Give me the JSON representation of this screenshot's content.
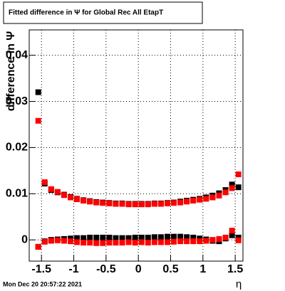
{
  "chart_data": {
    "type": "scatter",
    "title": "Fitted difference in  Ψ  for Global Rec All EtapT",
    "y_label": "difference in  Ψ",
    "x_label": "η",
    "timestamp": "Mon Dec 20 20:57:22 2021",
    "x": [
      -1.55,
      -1.45,
      -1.35,
      -1.25,
      -1.15,
      -1.05,
      -0.95,
      -0.85,
      -0.75,
      -0.65,
      -0.55,
      -0.45,
      -0.35,
      -0.25,
      -0.15,
      -0.05,
      0.05,
      0.15,
      0.25,
      0.35,
      0.45,
      0.55,
      0.65,
      0.75,
      0.85,
      0.95,
      1.05,
      1.15,
      1.25,
      1.35,
      1.45,
      1.55
    ],
    "series": [
      {
        "color": "#000000",
        "values": [
          0.032,
          0.0122,
          0.0108,
          0.0103,
          0.0098,
          0.0093,
          0.0089,
          0.0086,
          0.0084,
          0.0082,
          0.0081,
          0.008,
          0.0079,
          0.0079,
          0.0078,
          0.0078,
          0.0078,
          0.0078,
          0.0079,
          0.0079,
          0.008,
          0.0081,
          0.0083,
          0.0085,
          0.0087,
          0.0089,
          0.0092,
          0.0096,
          0.0101,
          0.0108,
          0.012,
          0.0114
        ]
      },
      {
        "color": "#000000",
        "values": [
          -0.0015,
          -0.0003,
          0.0,
          0.0001,
          0.0002,
          0.0003,
          0.0004,
          0.0004,
          0.0005,
          0.0005,
          0.0005,
          0.0005,
          0.0004,
          0.0004,
          0.0004,
          0.0005,
          0.0005,
          0.0005,
          0.0006,
          0.0006,
          0.0007,
          0.0007,
          0.0007,
          0.0006,
          0.0005,
          0.0003,
          0.0001,
          -0.0002,
          -0.0003,
          0.0003,
          0.001,
          0.0005
        ]
      },
      {
        "color": "#ff0000",
        "values": [
          0.0258,
          0.0125,
          0.011,
          0.0104,
          0.0097,
          0.0092,
          0.0088,
          0.0085,
          0.0083,
          0.0081,
          0.008,
          0.0079,
          0.0078,
          0.0078,
          0.0077,
          0.0077,
          0.0077,
          0.0077,
          0.0078,
          0.0078,
          0.0079,
          0.008,
          0.0081,
          0.0083,
          0.0085,
          0.0087,
          0.0089,
          0.0092,
          0.0096,
          0.0103,
          0.0112,
          0.0142
        ]
      },
      {
        "color": "#ff0000",
        "values": [
          -0.0015,
          -0.0004,
          -0.0002,
          -0.0001,
          -0.0002,
          -0.0003,
          -0.0005,
          -0.0006,
          -0.0006,
          -0.0007,
          -0.0007,
          -0.0006,
          -0.0006,
          -0.0006,
          -0.0005,
          -0.0006,
          -0.0005,
          -0.0006,
          -0.0005,
          -0.0005,
          -0.0005,
          -0.0004,
          -0.0003,
          -0.0003,
          -0.0003,
          -0.0003,
          -0.0002,
          0.0,
          0.0002,
          0.0005,
          0.002,
          -0.0001
        ]
      }
    ],
    "xlim": [
      -1.69,
      1.62
    ],
    "ylim": [
      -0.0046,
      0.0455
    ],
    "xticks": [
      -1.5,
      -1,
      -0.5,
      0,
      0.5,
      1,
      1.5
    ],
    "yticks": [
      0,
      0.01,
      0.02,
      0.03,
      0.04
    ],
    "grid": true
  }
}
